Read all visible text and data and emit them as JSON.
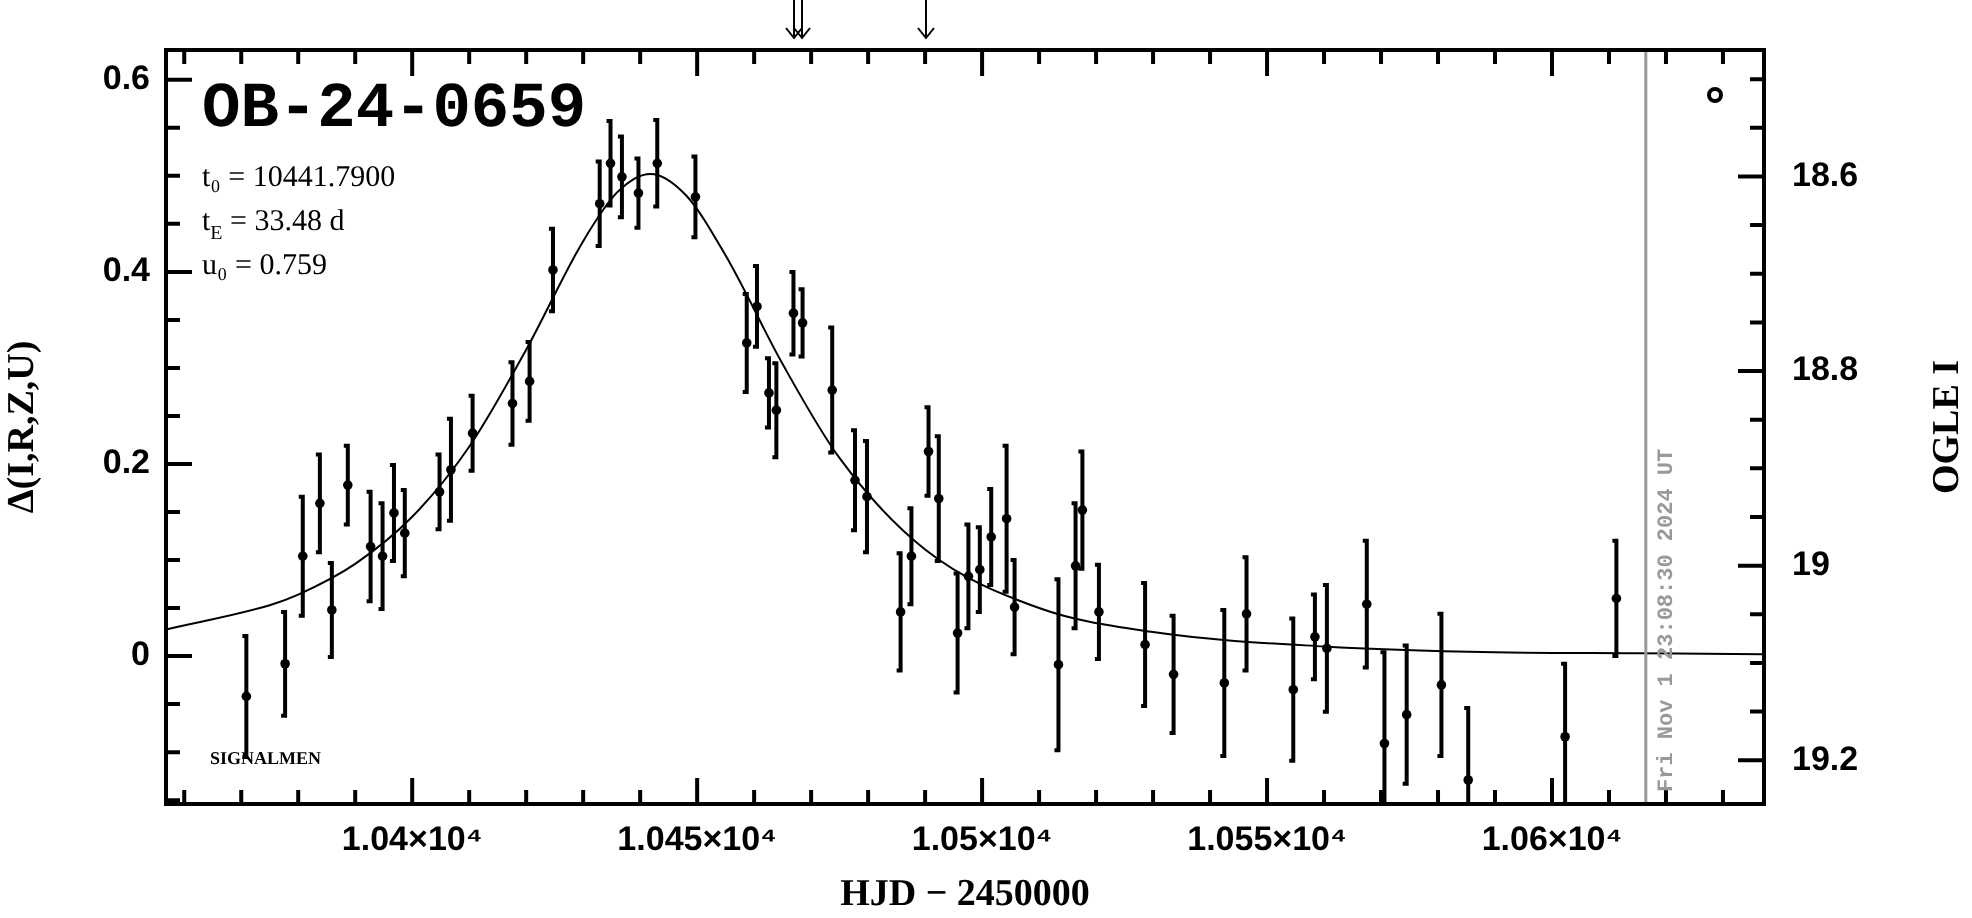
{
  "chart_data": {
    "type": "scatter",
    "title": "OB-24-0659",
    "xlabel": "HJD − 2450000",
    "ylabel": "Δ(I,R,Z,U)",
    "y2label": "OGLE I",
    "annotations": [
      "t₀ = 10441.7900",
      "t$_{E}$ = 33.48 d",
      "u₀ = 0.759",
      "SIGNALMEN",
      {
        "text": "Fri Nov 1 23:08:30 2024 UT",
        "x": 10616.46
      }
    ],
    "xlim": [
      10356.8,
      10637.2
    ],
    "xticks": [
      {
        "value": 10360,
        "label": null
      },
      {
        "value": 10370,
        "label": null
      },
      {
        "value": 10380,
        "label": null
      },
      {
        "value": 10390,
        "label": null
      },
      {
        "value": 10400,
        "label": "1.04×10⁴"
      },
      {
        "value": 10410,
        "label": null
      },
      {
        "value": 10420,
        "label": null
      },
      {
        "value": 10430,
        "label": null
      },
      {
        "value": 10440,
        "label": null
      },
      {
        "value": 10450,
        "label": "1.045×10⁴"
      },
      {
        "value": 10460,
        "label": null
      },
      {
        "value": 10470,
        "label": null
      },
      {
        "value": 10480,
        "label": null
      },
      {
        "value": 10490,
        "label": null
      },
      {
        "value": 10500,
        "label": "1.05×10⁴"
      },
      {
        "value": 10510,
        "label": null
      },
      {
        "value": 10520,
        "label": null
      },
      {
        "value": 10530,
        "label": null
      },
      {
        "value": 10540,
        "label": null
      },
      {
        "value": 10550,
        "label": "1.055×10⁴"
      },
      {
        "value": 10560,
        "label": null
      },
      {
        "value": 10570,
        "label": null
      },
      {
        "value": 10580,
        "label": null
      },
      {
        "value": 10590,
        "label": null
      },
      {
        "value": 10600,
        "label": "1.06×10⁴"
      },
      {
        "value": 10610,
        "label": null
      },
      {
        "value": 10620,
        "label": null
      },
      {
        "value": 10630,
        "label": null
      }
    ],
    "ylim": [
      -0.154,
      0.631
    ],
    "yticks": [
      {
        "value": -0.15,
        "label": null
      },
      {
        "value": -0.1,
        "label": null
      },
      {
        "value": -0.05,
        "label": null
      },
      0,
      {
        "value": 0.05,
        "label": null
      },
      {
        "value": 0.1,
        "label": null
      },
      {
        "value": 0.15,
        "label": null
      },
      0.2,
      {
        "value": 0.25,
        "label": null
      },
      {
        "value": 0.3,
        "label": null
      },
      {
        "value": 0.35,
        "label": null
      },
      0.4,
      {
        "value": 0.45,
        "label": null
      },
      {
        "value": 0.5,
        "label": null
      },
      {
        "value": 0.55,
        "label": null
      },
      0.6
    ],
    "y2lim": [
      19.245,
      18.47
    ],
    "y2ticks": [
      {
        "value": 18.5,
        "label": null
      },
      {
        "value": 18.55,
        "label": null
      },
      18.6,
      {
        "value": 18.65,
        "label": null
      },
      {
        "value": 18.7,
        "label": null
      },
      {
        "value": 18.75,
        "label": null
      },
      18.8,
      {
        "value": 18.85,
        "label": null
      },
      {
        "value": 18.9,
        "label": null
      },
      {
        "value": 18.95,
        "label": null
      },
      19,
      {
        "value": 19.05,
        "label": null
      },
      {
        "value": 19.1,
        "label": null
      },
      {
        "value": 19.15,
        "label": null
      },
      19.2
    ],
    "grid": false,
    "legend": false,
    "ref_lines": [
      {
        "axis": "x",
        "value": 10616.46,
        "color": "#999999"
      }
    ],
    "series": [
      {
        "marker": "circle",
        "color": "#000000",
        "x": [
          10370.9,
          10377.7,
          10380.8,
          10383.8,
          10385.9,
          10388.7,
          10392.7,
          10394.8,
          10396.8,
          10398.7,
          10404.8,
          10406.8,
          10410.6,
          10417.6,
          10420.6,
          10424.7,
          10432.9,
          10434.8,
          10436.8,
          10439.7,
          10443.0,
          10449.7,
          10458.7,
          10460.5,
          10462.6,
          10463.9,
          10466.9,
          10468.5,
          10473.7,
          10477.7,
          10479.8,
          10485.7,
          10487.6,
          10490.6,
          10492.4,
          10495.7,
          10497.6,
          10499.6,
          10501.6,
          10504.3,
          10505.7,
          10513.4,
          10516.4,
          10517.6,
          10520.5,
          10528.6,
          10533.6,
          10542.5,
          10546.4,
          10554.6,
          10558.4,
          10560.5,
          10567.5,
          10570.6,
          10574.5,
          10580.6,
          10585.3,
          10602.3,
          10611.3
        ],
        "values": [
          -0.042,
          -0.008,
          0.104,
          0.159,
          0.048,
          0.178,
          0.114,
          0.104,
          0.149,
          0.128,
          0.171,
          0.194,
          0.232,
          0.263,
          0.286,
          0.402,
          0.471,
          0.513,
          0.499,
          0.482,
          0.513,
          0.478,
          0.326,
          0.364,
          0.274,
          0.256,
          0.357,
          0.347,
          0.277,
          0.183,
          0.166,
          0.046,
          0.104,
          0.213,
          0.164,
          0.024,
          0.083,
          0.09,
          0.124,
          0.143,
          0.051,
          -0.009,
          0.094,
          0.152,
          0.046,
          0.012,
          -0.019,
          -0.028,
          0.044,
          -0.035,
          0.02,
          0.008,
          0.054,
          -0.091,
          -0.061,
          -0.03,
          -0.129,
          -0.084,
          0.06
        ],
        "errors": [
          0.063,
          0.054,
          0.062,
          0.051,
          0.049,
          0.041,
          0.057,
          0.055,
          0.05,
          0.045,
          0.039,
          0.053,
          0.039,
          0.043,
          0.041,
          0.043,
          0.044,
          0.044,
          0.042,
          0.036,
          0.045,
          0.042,
          0.051,
          0.042,
          0.036,
          0.049,
          0.043,
          0.035,
          0.065,
          0.052,
          0.058,
          0.061,
          0.05,
          0.046,
          0.065,
          0.062,
          0.054,
          0.044,
          0.05,
          0.076,
          0.049,
          0.089,
          0.065,
          0.061,
          0.049,
          0.064,
          0.061,
          0.076,
          0.059,
          0.074,
          0.044,
          0.066,
          0.066,
          [
            -0.154,
            0.004
          ],
          0.072,
          0.074,
          [
            -0.154,
            -0.054
          ],
          [
            -0.154,
            -0.008
          ],
          0.06
        ]
      },
      {
        "type": "line",
        "marker": "none",
        "color": "#000000",
        "x": [
          10357,
          10375,
          10380,
          10390,
          10400,
          10410,
          10420,
          10430,
          10436,
          10441.79,
          10448,
          10455,
          10465,
          10475,
          10490,
          10510,
          10530,
          10560,
          10590,
          10615,
          10637
        ],
        "values": [
          0.028,
          0.053,
          0.064,
          0.096,
          0.145,
          0.218,
          0.319,
          0.432,
          0.483,
          0.502,
          0.48,
          0.417,
          0.304,
          0.206,
          0.111,
          0.05,
          0.025,
          0.01,
          0.004,
          0.003,
          0.002
        ]
      }
    ]
  }
}
